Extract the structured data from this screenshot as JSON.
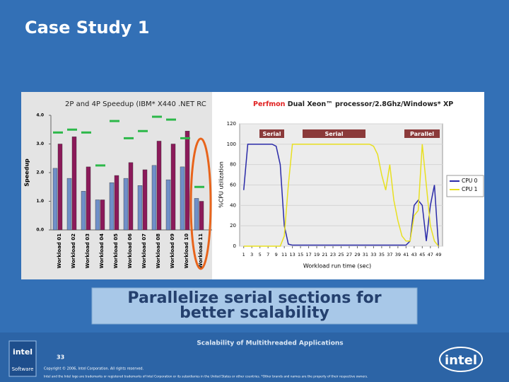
{
  "slide": {
    "title": "Case Study 1",
    "caption_lines": [
      "Parallelize serial sections for",
      "better scalability"
    ],
    "footer_title": "Scalability of Multithreaded Applications",
    "page_number": "33",
    "copyright": "Copyright © 2006, Intel Corporation. All rights reserved.",
    "trademark": "Intel and the Intel logo are trademarks or registered trademarks of Intel Corporation or its subsidiaries in the United States or other countries. *Other brands and names are the property of their respective owners.",
    "logo_left": "intel",
    "logo_left_sub": "Software",
    "logo_right": "intel"
  },
  "chart_data": [
    {
      "type": "bar",
      "title": "2P and 4P Speedup (IBM* X440 .NET RC",
      "y_label": "Speedup",
      "categories": [
        "Workload 01",
        "Workload 02",
        "Workload 03",
        "Workload 04",
        "Workload 05",
        "Workload 06",
        "Workload 07",
        "Workload 08",
        "Workload 09",
        "Workload 10",
        "Workload 11"
      ],
      "series": [
        {
          "color": "#6f8fc8",
          "style": "bar",
          "values": [
            2.15,
            1.8,
            1.35,
            1.05,
            1.65,
            1.8,
            1.55,
            2.25,
            1.75,
            2.2,
            1.1
          ]
        },
        {
          "color": "#8b1a5a",
          "style": "bar",
          "values": [
            3.0,
            3.25,
            2.2,
            1.05,
            1.9,
            2.35,
            2.1,
            3.1,
            3.0,
            3.45,
            1.0
          ]
        },
        {
          "color": "#2db84a",
          "style": "dash",
          "values": [
            3.4,
            3.5,
            3.4,
            2.25,
            3.8,
            3.2,
            3.45,
            3.95,
            3.85,
            3.2,
            1.5
          ]
        }
      ],
      "ylim": [
        0,
        4
      ],
      "yticks": [
        {
          "value": 0,
          "label": "0.0"
        },
        {
          "value": 1,
          "label": "1.0"
        },
        {
          "value": 2,
          "label": "2.0"
        },
        {
          "value": 3,
          "label": "3.0"
        },
        {
          "value": 4,
          "label": "4.0"
        }
      ]
    },
    {
      "type": "line",
      "title_parts": [
        "Perfmon",
        " Dual Xeon™ processor/2.8Ghz/Windows* XP"
      ],
      "y_label": "%CPU utilization",
      "x_label": "Workload run time (sec)",
      "annotations": [
        "Serial",
        "Serial",
        "Parallel"
      ],
      "x": [
        1,
        2,
        3,
        4,
        5,
        6,
        7,
        8,
        9,
        10,
        11,
        12,
        13,
        14,
        15,
        16,
        17,
        18,
        19,
        20,
        21,
        22,
        23,
        24,
        25,
        26,
        27,
        28,
        29,
        30,
        31,
        32,
        33,
        34,
        35,
        36,
        37,
        38,
        39,
        40,
        41,
        42,
        43,
        44,
        45,
        46,
        47,
        48,
        49
      ],
      "series": [
        {
          "name": "CPU 0",
          "color": "#2a2aa8",
          "values": [
            55,
            100,
            100,
            100,
            100,
            100,
            100,
            100,
            98,
            80,
            20,
            2,
            1,
            1,
            1,
            1,
            1,
            1,
            1,
            1,
            1,
            1,
            1,
            1,
            1,
            1,
            1,
            1,
            1,
            1,
            1,
            1,
            1,
            1,
            1,
            1,
            1,
            1,
            1,
            1,
            1,
            5,
            40,
            45,
            40,
            5,
            40,
            60,
            0
          ]
        },
        {
          "name": "CPU 1",
          "color": "#e8e020",
          "values": [
            0,
            0,
            0,
            0,
            0,
            0,
            0,
            0,
            0,
            0,
            10,
            60,
            100,
            100,
            100,
            100,
            100,
            100,
            100,
            100,
            100,
            100,
            100,
            100,
            100,
            100,
            100,
            100,
            100,
            100,
            100,
            100,
            98,
            90,
            70,
            55,
            80,
            45,
            25,
            10,
            5,
            5,
            30,
            35,
            100,
            60,
            20,
            5,
            0
          ]
        }
      ],
      "xlim": [
        0,
        50
      ],
      "ylim": [
        0,
        120
      ],
      "xticks": [
        1,
        3,
        5,
        7,
        9,
        11,
        13,
        15,
        17,
        19,
        21,
        23,
        25,
        27,
        29,
        31,
        33,
        35,
        37,
        39,
        41,
        43,
        45,
        47,
        49
      ],
      "yticks": [
        0,
        20,
        40,
        60,
        80,
        100,
        120
      ],
      "grid": true
    }
  ]
}
